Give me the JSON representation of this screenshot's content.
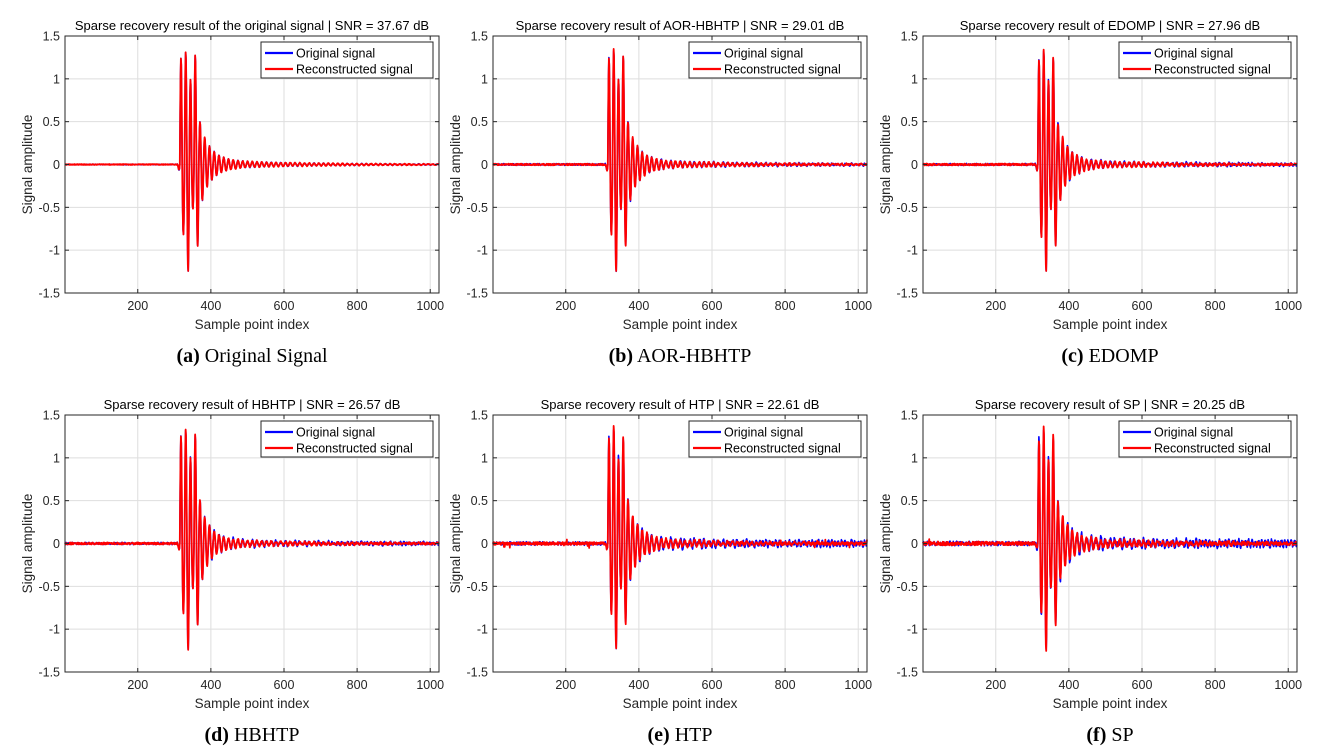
{
  "chart_data": [
    {
      "type": "line",
      "panel_label": "(a)",
      "caption": "Original Signal",
      "title": "Sparse recovery result of the original signal | SNR = 37.67 dB",
      "xlabel": "Sample point index",
      "ylabel": "Signal amplitude",
      "xlim": [
        1,
        1024
      ],
      "ylim": [
        -1.5,
        1.5
      ],
      "xticks": [
        200,
        400,
        600,
        800,
        1000
      ],
      "yticks": [
        -1.5,
        -1,
        -0.5,
        0,
        0.5,
        1,
        1.5
      ],
      "grid": true,
      "legend_position": "top-right",
      "series": [
        {
          "name": "Original signal",
          "color": "#0000ff"
        },
        {
          "name": "Reconstructed signal",
          "color": "#ff0000"
        }
      ],
      "signal": {
        "onset": 315,
        "peaks": [
          1.25,
          -0.82,
          1.32,
          -1.25,
          1.0,
          -0.52,
          1.28,
          -0.96,
          0.5,
          -0.42
        ],
        "tail_amp": 0.05,
        "noise": 0.004,
        "spike_noise": 0.0,
        "blue_offset": 0.0
      }
    },
    {
      "type": "line",
      "panel_label": "(b)",
      "caption": "AOR-HBHTP",
      "title": "Sparse recovery result of AOR-HBHTP | SNR = 29.01 dB",
      "xlabel": "Sample point index",
      "ylabel": "Signal amplitude",
      "xlim": [
        1,
        1024
      ],
      "ylim": [
        -1.5,
        1.5
      ],
      "xticks": [
        200,
        400,
        600,
        800,
        1000
      ],
      "yticks": [
        -1.5,
        -1,
        -0.5,
        0,
        0.5,
        1,
        1.5
      ],
      "grid": true,
      "legend_position": "top-right",
      "series": [
        {
          "name": "Original signal",
          "color": "#0000ff"
        },
        {
          "name": "Reconstructed signal",
          "color": "#ff0000"
        }
      ],
      "signal": {
        "onset": 315,
        "peaks": [
          1.25,
          -0.82,
          1.35,
          -1.25,
          1.0,
          -0.52,
          1.28,
          -0.96,
          0.5,
          -0.42
        ],
        "tail_amp": 0.05,
        "noise": 0.008,
        "spike_noise": 0.0,
        "blue_offset": 0.01
      }
    },
    {
      "type": "line",
      "panel_label": "(c)",
      "caption": "EDOMP",
      "title": "Sparse recovery result of EDOMP | SNR = 27.96 dB",
      "xlabel": "Sample point index",
      "ylabel": "Signal amplitude",
      "xlim": [
        1,
        1024
      ],
      "ylim": [
        -1.5,
        1.5
      ],
      "xticks": [
        200,
        400,
        600,
        800,
        1000
      ],
      "yticks": [
        -1.5,
        -1,
        -0.5,
        0,
        0.5,
        1,
        1.5
      ],
      "grid": true,
      "legend_position": "top-right",
      "series": [
        {
          "name": "Original signal",
          "color": "#0000ff"
        },
        {
          "name": "Reconstructed signal",
          "color": "#ff0000"
        }
      ],
      "signal": {
        "onset": 315,
        "peaks": [
          1.22,
          -0.85,
          1.35,
          -1.25,
          0.98,
          -0.52,
          1.26,
          -0.96,
          0.48,
          -0.42
        ],
        "tail_amp": 0.05,
        "noise": 0.009,
        "spike_noise": 0.0,
        "blue_offset": 0.012
      }
    },
    {
      "type": "line",
      "panel_label": "(d)",
      "caption": "HBHTP",
      "title": "Sparse recovery result of HBHTP | SNR = 26.57 dB",
      "xlabel": "Sample point index",
      "ylabel": "Signal amplitude",
      "xlim": [
        1,
        1024
      ],
      "ylim": [
        -1.5,
        1.5
      ],
      "xticks": [
        200,
        400,
        600,
        800,
        1000
      ],
      "yticks": [
        -1.5,
        -1,
        -0.5,
        0,
        0.5,
        1,
        1.5
      ],
      "grid": true,
      "legend_position": "top-right",
      "series": [
        {
          "name": "Original signal",
          "color": "#0000ff"
        },
        {
          "name": "Reconstructed signal",
          "color": "#ff0000"
        }
      ],
      "signal": {
        "onset": 315,
        "peaks": [
          1.25,
          -0.82,
          1.35,
          -1.25,
          1.0,
          -0.52,
          1.28,
          -0.96,
          0.5,
          -0.42
        ],
        "tail_amp": 0.05,
        "noise": 0.01,
        "spike_noise": 0.0,
        "blue_offset": 0.015
      }
    },
    {
      "type": "line",
      "panel_label": "(e)",
      "caption": "HTP",
      "title": "Sparse recovery result of HTP | SNR = 22.61 dB",
      "xlabel": "Sample point index",
      "ylabel": "Signal amplitude",
      "xlim": [
        1,
        1024
      ],
      "ylim": [
        -1.5,
        1.5
      ],
      "xticks": [
        200,
        400,
        600,
        800,
        1000
      ],
      "yticks": [
        -1.5,
        -1,
        -0.5,
        0,
        0.5,
        1,
        1.5
      ],
      "grid": true,
      "legend_position": "top-right",
      "series": [
        {
          "name": "Original signal",
          "color": "#0000ff"
        },
        {
          "name": "Reconstructed signal",
          "color": "#ff0000"
        }
      ],
      "signal": {
        "onset": 315,
        "peaks": [
          1.22,
          -0.82,
          1.38,
          -1.22,
          1.0,
          -0.52,
          1.26,
          -0.94,
          0.5,
          -0.42
        ],
        "tail_amp": 0.06,
        "noise": 0.014,
        "spike_noise": 0.05,
        "blue_offset": 0.03
      }
    },
    {
      "type": "line",
      "panel_label": "(f)",
      "caption": "SP",
      "title": "Sparse recovery result of SP | SNR = 20.25 dB",
      "xlabel": "Sample point index",
      "ylabel": "Signal amplitude",
      "xlim": [
        1,
        1024
      ],
      "ylim": [
        -1.5,
        1.5
      ],
      "xticks": [
        200,
        400,
        600,
        800,
        1000
      ],
      "yticks": [
        -1.5,
        -1,
        -0.5,
        0,
        0.5,
        1,
        1.5
      ],
      "grid": true,
      "legend_position": "top-right",
      "series": [
        {
          "name": "Original signal",
          "color": "#0000ff"
        },
        {
          "name": "Reconstructed signal",
          "color": "#ff0000"
        }
      ],
      "signal": {
        "onset": 315,
        "peaks": [
          1.22,
          -0.85,
          1.36,
          -1.25,
          1.0,
          -0.52,
          1.26,
          -0.96,
          0.48,
          -0.42
        ],
        "tail_amp": 0.06,
        "noise": 0.018,
        "spike_noise": 0.04,
        "blue_offset": 0.035
      }
    }
  ]
}
